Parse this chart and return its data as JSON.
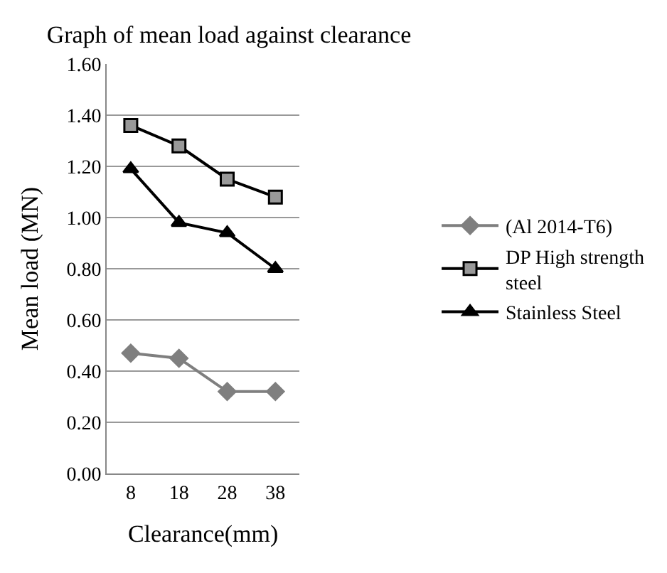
{
  "chart_data": {
    "type": "line",
    "title": "Graph of mean load against clearance",
    "xlabel": "Clearance(mm)",
    "ylabel": "Mean load (MN)",
    "categories": [
      "8",
      "18",
      "28",
      "38"
    ],
    "series": [
      {
        "name": "(Al 2014-T6)",
        "color": "#7f7f7f",
        "marker": "diamond",
        "values": [
          0.47,
          0.45,
          0.32,
          0.32
        ]
      },
      {
        "name": "DP High strength steel",
        "color": "#000000",
        "marker": "square",
        "values": [
          1.36,
          1.28,
          1.15,
          1.08
        ]
      },
      {
        "name": "Stainless Steel",
        "color": "#000000",
        "marker": "triangle",
        "values": [
          1.19,
          0.98,
          0.94,
          0.8
        ]
      }
    ],
    "ylim": [
      0,
      1.6
    ],
    "yticks": [
      {
        "value": 0,
        "label": "0.00"
      },
      {
        "value": 0.2,
        "label": "0.20"
      },
      {
        "value": 0.4,
        "label": "0.40"
      },
      {
        "value": 0.6,
        "label": "0.60"
      },
      {
        "value": 0.8,
        "label": "0.80"
      },
      {
        "value": 1.0,
        "label": "1.00"
      },
      {
        "value": 1.2,
        "label": "1.20"
      },
      {
        "value": 1.4,
        "label": "1.40"
      },
      {
        "value": 1.6,
        "label": "1.60"
      }
    ],
    "grid": "y",
    "legend": "right",
    "line_style": "solid"
  }
}
